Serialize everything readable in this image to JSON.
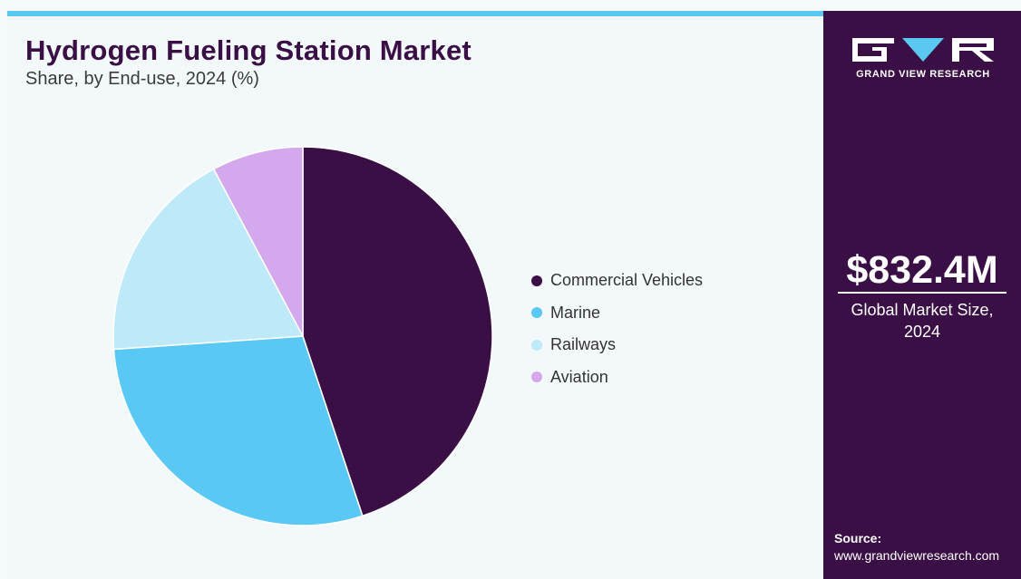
{
  "header": {
    "title": "Hydrogen Fueling Station Market",
    "subtitle": "Share, by End-use, 2024 (%)"
  },
  "chart_data": {
    "type": "pie",
    "title": "Hydrogen Fueling Station Market",
    "subtitle": "Share, by End-use, 2024 (%)",
    "start_angle_deg": 0,
    "direction": "clockwise",
    "legend_position": "right",
    "slices": [
      {
        "name": "Commercial Vehicles",
        "value": 44.9,
        "color": "#3a0f46"
      },
      {
        "name": "Marine",
        "value": 29.0,
        "color": "#5ac8f5"
      },
      {
        "name": "Railways",
        "value": 18.3,
        "color": "#bde9f8"
      },
      {
        "name": "Aviation",
        "value": 7.8,
        "color": "#d4a8ec"
      }
    ]
  },
  "side_panel": {
    "logo_text": "GRAND VIEW RESEARCH",
    "market_size": "$832.4M",
    "market_size_caption_line1": "Global Market Size,",
    "market_size_caption_line2": "2024",
    "source_label": "Source:",
    "source_url": "www.grandviewresearch.com",
    "accent_color": "#5ac8f0",
    "background_color": "#3a0f46"
  }
}
